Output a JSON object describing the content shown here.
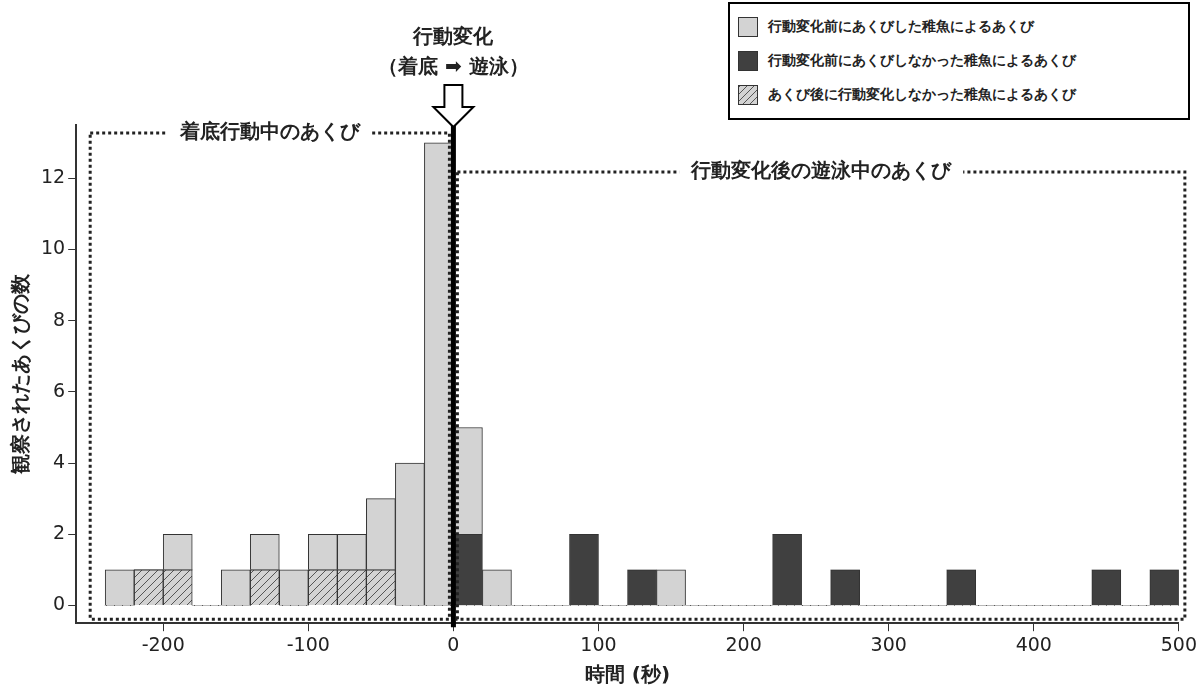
{
  "chart_data": {
    "type": "histogram",
    "stacked": true,
    "grid": false,
    "x_label": "時間 (秒)",
    "y_label": "観察されたあくびの数",
    "bins": [
      -240,
      -220,
      -200,
      -180,
      -160,
      -140,
      -120,
      -100,
      -80,
      -60,
      -40,
      -20,
      0,
      20,
      40,
      60,
      80,
      100,
      120,
      140,
      160,
      180,
      200,
      220,
      240,
      260,
      280,
      300,
      320,
      340,
      360,
      380,
      400,
      420,
      440,
      460,
      480,
      500
    ],
    "series": [
      {
        "name": "行動変化前にあくびした稚魚によるあくび",
        "color": "#d3d3d3",
        "values": [
          1,
          0,
          1,
          0,
          1,
          1,
          1,
          1,
          1,
          2,
          4,
          13,
          3,
          1,
          0,
          0,
          0,
          0,
          0,
          1,
          0,
          0,
          0,
          0,
          0,
          0,
          0,
          0,
          0,
          0,
          0,
          0,
          0,
          0,
          0,
          0,
          0
        ]
      },
      {
        "name": "行動変化前にあくびしなかった稚魚によるあくび",
        "color": "#404040",
        "values": [
          0,
          0,
          0,
          0,
          0,
          0,
          0,
          0,
          0,
          0,
          0,
          0,
          2,
          0,
          0,
          0,
          2,
          0,
          1,
          0,
          0,
          0,
          0,
          2,
          0,
          1,
          0,
          0,
          0,
          1,
          0,
          0,
          0,
          0,
          1,
          0,
          1
        ]
      },
      {
        "name": "あくび後に行動変化しなかった稚魚によるあくび",
        "color": "#d3d3d3",
        "marker": "hatch",
        "values": [
          0,
          1,
          1,
          0,
          0,
          1,
          0,
          1,
          1,
          1,
          0,
          0,
          0,
          0,
          0,
          0,
          0,
          0,
          0,
          0,
          0,
          0,
          0,
          0,
          0,
          0,
          0,
          0,
          0,
          0,
          0,
          0,
          0,
          0,
          0,
          0,
          0
        ]
      }
    ],
    "xlim": [
      -260,
      500
    ],
    "xticks": [
      -200,
      -100,
      0,
      100,
      200,
      300,
      400,
      500
    ],
    "ylim": [
      -0.5,
      13.5
    ],
    "yticks": [
      0,
      2,
      4,
      6,
      8,
      10,
      12
    ],
    "event": {
      "label": [
        "行動変化",
        "（着底 ➡ 遊泳）"
      ],
      "x": 0
    },
    "regions": [
      {
        "label": "着底行動中のあくび",
        "x": [
          -260,
          0
        ]
      },
      {
        "label": "行動変化後の遊泳中のあくび",
        "x": [
          0,
          500
        ]
      }
    ]
  }
}
